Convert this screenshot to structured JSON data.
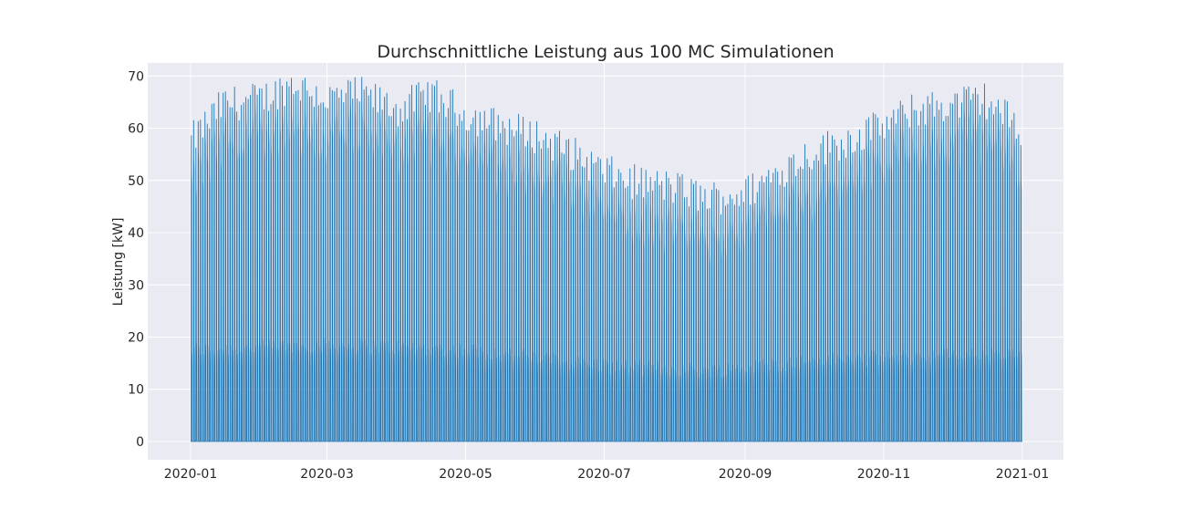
{
  "chart_data": {
    "type": "line",
    "title": "Durchschnittliche Leistung aus 100 MC Simulationen",
    "xlabel": "",
    "ylabel": "Leistung [kW]",
    "x_range": [
      "2020-01-01",
      "2021-01-01"
    ],
    "ylim": [
      -3.5,
      72.5
    ],
    "yticks": [
      0,
      10,
      20,
      30,
      40,
      50,
      60,
      70
    ],
    "xticks": [
      "2020-01",
      "2020-03",
      "2020-05",
      "2020-07",
      "2020-09",
      "2020-11",
      "2021-01"
    ],
    "grid": true,
    "series": [
      {
        "color": "#1f77b4",
        "sampling": "daily profile, ~15 min resolution",
        "daily_peak_kw": [
          {
            "date": "2020-01-01",
            "value": 58
          },
          {
            "date": "2020-01-15",
            "value": 65
          },
          {
            "date": "2020-02-01",
            "value": 66
          },
          {
            "date": "2020-02-15",
            "value": 69
          },
          {
            "date": "2020-03-01",
            "value": 66
          },
          {
            "date": "2020-03-15",
            "value": 67
          },
          {
            "date": "2020-04-01",
            "value": 64
          },
          {
            "date": "2020-04-15",
            "value": 67
          },
          {
            "date": "2020-05-01",
            "value": 63
          },
          {
            "date": "2020-05-15",
            "value": 61
          },
          {
            "date": "2020-06-01",
            "value": 59
          },
          {
            "date": "2020-06-15",
            "value": 56
          },
          {
            "date": "2020-07-01",
            "value": 52
          },
          {
            "date": "2020-07-15",
            "value": 50
          },
          {
            "date": "2020-08-01",
            "value": 49
          },
          {
            "date": "2020-08-15",
            "value": 47
          },
          {
            "date": "2020-09-01",
            "value": 48
          },
          {
            "date": "2020-09-15",
            "value": 52
          },
          {
            "date": "2020-10-01",
            "value": 56
          },
          {
            "date": "2020-10-15",
            "value": 58
          },
          {
            "date": "2020-11-01",
            "value": 61
          },
          {
            "date": "2020-11-15",
            "value": 64
          },
          {
            "date": "2020-12-01",
            "value": 65
          },
          {
            "date": "2020-12-15",
            "value": 66
          },
          {
            "date": "2021-01-01",
            "value": 60
          }
        ],
        "daily_mid_level_kw": [
          {
            "date": "2020-01-01",
            "value": 16
          },
          {
            "date": "2020-03-01",
            "value": 17
          },
          {
            "date": "2020-05-01",
            "value": 16
          },
          {
            "date": "2020-07-01",
            "value": 13
          },
          {
            "date": "2020-08-15",
            "value": 12
          },
          {
            "date": "2020-10-01",
            "value": 14
          },
          {
            "date": "2020-12-01",
            "value": 15
          },
          {
            "date": "2021-01-01",
            "value": 15
          }
        ],
        "daily_min_kw": 0
      }
    ]
  }
}
